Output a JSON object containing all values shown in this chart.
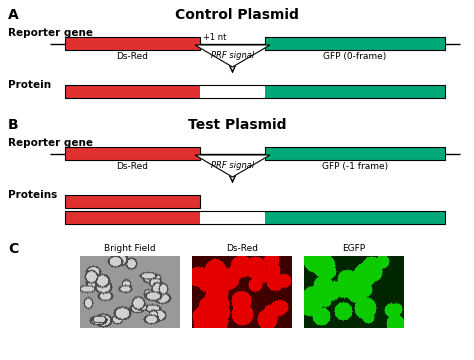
{
  "title_A": "Control Plasmid",
  "title_B": "Test Plasmid",
  "label_A": "A",
  "label_B": "B",
  "label_C": "C",
  "reporter_gene_label": "Reporter gene",
  "protein_label_A": "Protein",
  "proteins_label_B": "Proteins",
  "dsred_label": "Ds-Red",
  "gfp0_label": "GFP (0-frame)",
  "gfp1_label": "GFP (-1 frame)",
  "prf_signal_label": "PRF signal",
  "plus1nt_label": "+1 nt",
  "bright_field_label": "Bright Field",
  "dsred_channel_label": "Ds-Red",
  "egfp_label": "EGFP",
  "red_color": "#e03030",
  "green_color": "#00a87a",
  "white_color": "#ffffff",
  "black_color": "#000000",
  "bg_color": "#ffffff",
  "fig_width": 4.74,
  "fig_height": 3.6,
  "dpi": 100
}
